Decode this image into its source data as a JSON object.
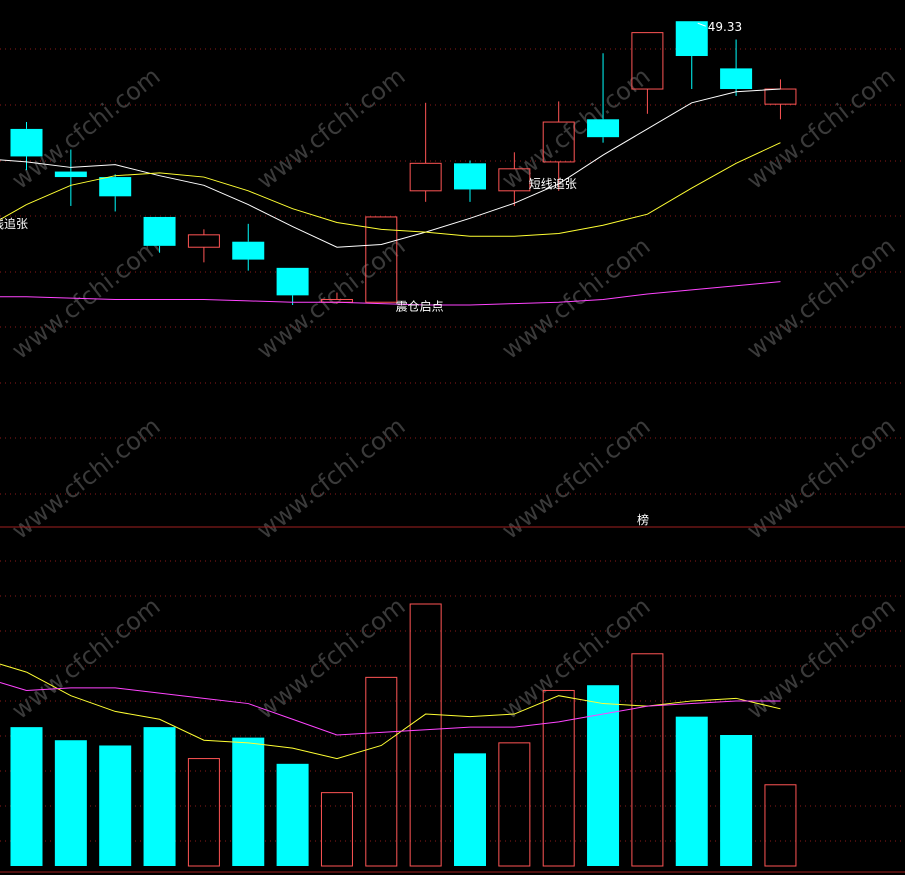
{
  "chart_data": [
    {
      "type": "candlestick",
      "panel": "price",
      "ylim": [
        26.3,
        50.0
      ],
      "candles": [
        {
          "o": 41.5,
          "h": 42.0,
          "l": 38.5,
          "c": 39.5,
          "dir": "down"
        },
        {
          "o": 38.4,
          "h": 40.0,
          "l": 35.9,
          "c": 38.0,
          "dir": "down"
        },
        {
          "o": 38.0,
          "h": 38.2,
          "l": 35.5,
          "c": 36.6,
          "dir": "down"
        },
        {
          "o": 35.1,
          "h": 35.1,
          "l": 32.5,
          "c": 33.0,
          "dir": "down"
        },
        {
          "o": 32.9,
          "h": 34.2,
          "l": 31.8,
          "c": 33.8,
          "dir": "up"
        },
        {
          "o": 33.3,
          "h": 34.6,
          "l": 31.2,
          "c": 32.0,
          "dir": "down"
        },
        {
          "o": 31.4,
          "h": 31.4,
          "l": 28.7,
          "c": 29.4,
          "dir": "down"
        },
        {
          "o": 28.9,
          "h": 29.6,
          "l": 28.8,
          "c": 29.1,
          "dir": "up"
        },
        {
          "o": 28.9,
          "h": 35.1,
          "l": 28.9,
          "c": 35.1,
          "dir": "up"
        },
        {
          "o": 37.0,
          "h": 43.4,
          "l": 36.2,
          "c": 39.0,
          "dir": "up"
        },
        {
          "o": 39.0,
          "h": 39.2,
          "l": 36.2,
          "c": 37.1,
          "dir": "down"
        },
        {
          "o": 37.0,
          "h": 39.8,
          "l": 35.9,
          "c": 38.6,
          "dir": "up"
        },
        {
          "o": 39.1,
          "h": 43.5,
          "l": 37.0,
          "c": 42.0,
          "dir": "up"
        },
        {
          "o": 42.2,
          "h": 47.0,
          "l": 40.5,
          "c": 40.9,
          "dir": "down"
        },
        {
          "o": 44.4,
          "h": 48.5,
          "l": 42.6,
          "c": 48.5,
          "dir": "up"
        },
        {
          "o": 49.33,
          "h": 49.33,
          "l": 44.4,
          "c": 46.8,
          "dir": "down"
        },
        {
          "o": 45.9,
          "h": 48.0,
          "l": 43.9,
          "c": 44.4,
          "dir": "down"
        },
        {
          "o": 43.3,
          "h": 45.1,
          "l": 42.2,
          "c": 44.4,
          "dir": "up"
        }
      ],
      "ma_lines": [
        {
          "color": "#ffffff",
          "values": [
            39.1,
            38.7,
            38.9,
            38.1,
            37.4,
            36.0,
            34.4,
            32.9,
            33.1,
            34.0,
            35.0,
            36.1,
            37.5,
            39.6,
            41.5,
            43.4,
            44.2,
            44.4
          ]
        },
        {
          "color": "#ffff33",
          "values": [
            36.0,
            37.4,
            38.1,
            38.3,
            38.0,
            37.0,
            35.7,
            34.7,
            34.2,
            34.0,
            33.7,
            33.7,
            33.9,
            34.5,
            35.3,
            37.2,
            39.0,
            40.5
          ]
        },
        {
          "color": "#ff44ff",
          "values": [
            29.3,
            29.2,
            29.1,
            29.1,
            29.1,
            29.0,
            28.9,
            28.9,
            28.8,
            28.7,
            28.7,
            28.8,
            28.9,
            29.1,
            29.5,
            29.8,
            30.1,
            30.4
          ]
        }
      ],
      "max_label": "49.33",
      "annotations": [
        {
          "text": "线追张",
          "at_index": 0,
          "price": 34.3
        },
        {
          "text": "震仓启点",
          "at_index": 9,
          "price": 28.3
        },
        {
          "text": "短线追张",
          "at_index": 12,
          "price": 37.2
        }
      ]
    },
    {
      "type": "bar",
      "panel": "volume",
      "ylim": [
        0,
        100
      ],
      "values": [
        53,
        48,
        46,
        53,
        41,
        49,
        39,
        28,
        72,
        100,
        43,
        47,
        67,
        69,
        81,
        57,
        50,
        31
      ],
      "directions": [
        "down",
        "down",
        "down",
        "down",
        "up",
        "down",
        "down",
        "up",
        "up",
        "up",
        "down",
        "up",
        "up",
        "down",
        "up",
        "down",
        "down",
        "up"
      ],
      "ma_lines": [
        {
          "color": "#ffff33",
          "values": [
            74,
            65,
            59,
            56,
            48,
            47,
            45,
            41,
            46,
            58,
            57,
            58,
            65,
            62,
            61,
            63,
            64,
            60
          ]
        },
        {
          "color": "#ff44ff",
          "values": [
            67,
            68,
            68,
            66,
            64,
            62,
            56,
            50,
            51,
            52,
            53,
            53,
            55,
            58,
            61,
            62,
            63,
            63
          ]
        }
      ]
    }
  ],
  "divider_label": "榜",
  "watermark": "www.cfchi.com",
  "colors": {
    "up": "#ff5555",
    "down": "#00ffff",
    "grid": "#8b1a1a",
    "background": "#000000"
  }
}
